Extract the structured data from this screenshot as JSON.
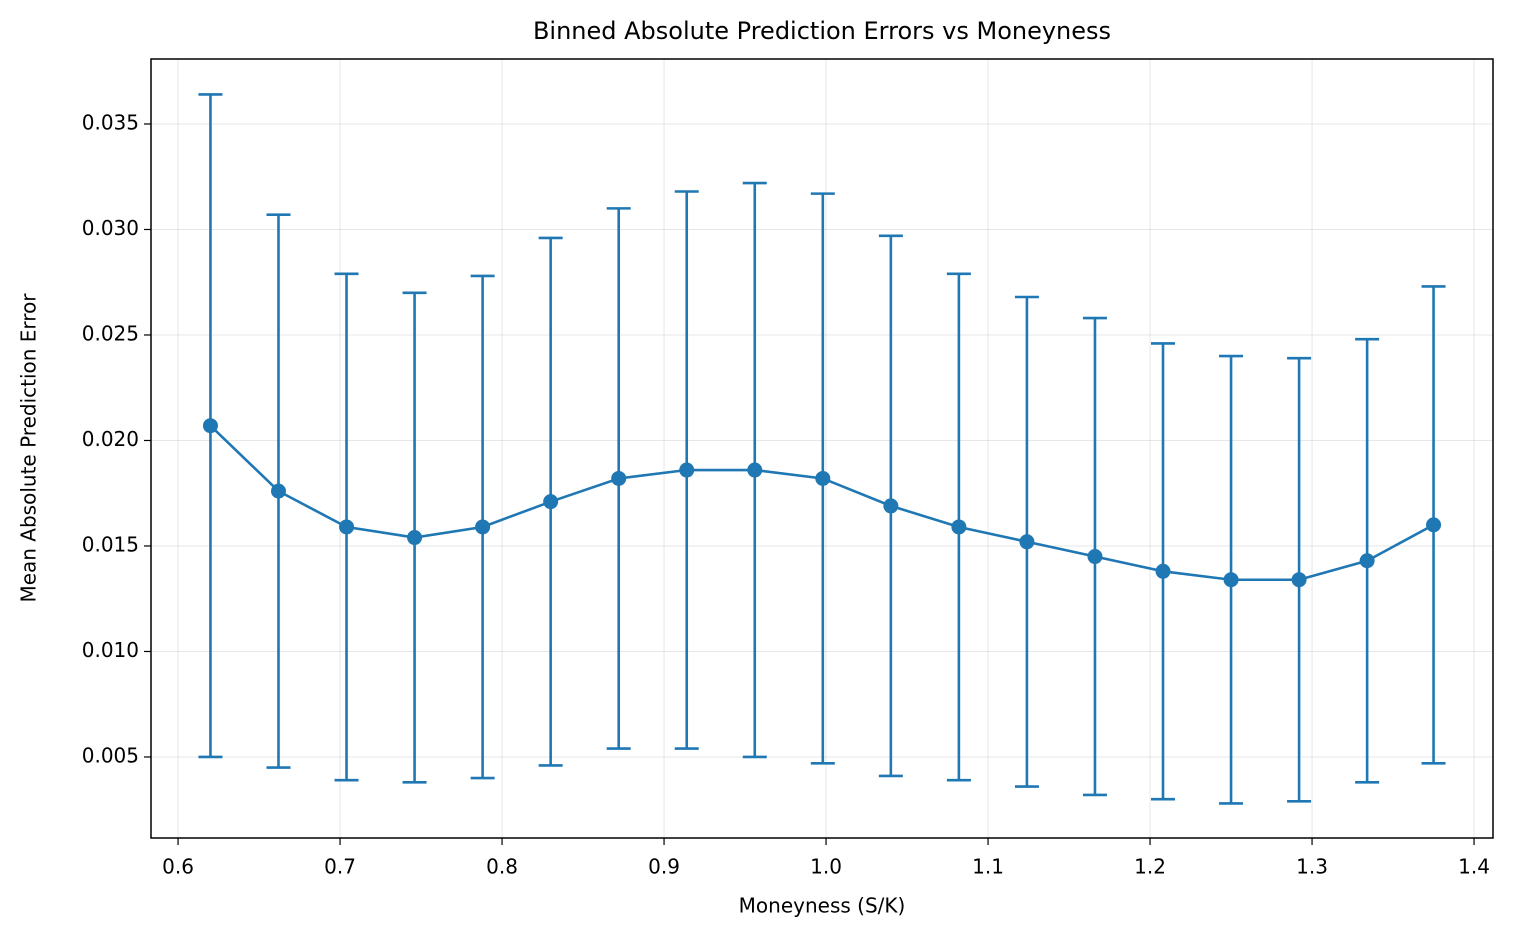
{
  "chart_data": {
    "type": "errorbar",
    "title": "Binned Absolute Prediction Errors vs Moneyness",
    "x_label": "Moneyness (S/K)",
    "y_label": "Mean Absolute Prediction Error",
    "x": [
      0.62,
      0.662,
      0.704,
      0.746,
      0.788,
      0.83,
      0.872,
      0.914,
      0.956,
      0.998,
      1.04,
      1.082,
      1.124,
      1.166,
      1.208,
      1.25,
      1.292,
      1.334,
      1.375
    ],
    "series": [
      {
        "name": "Mean Absolute Prediction Error",
        "color": "#1f77b4",
        "values": [
          0.0207,
          0.0176,
          0.0159,
          0.0154,
          0.0159,
          0.0171,
          0.0182,
          0.0186,
          0.0186,
          0.0182,
          0.0169,
          0.0159,
          0.0152,
          0.0145,
          0.0138,
          0.0134,
          0.0134,
          0.0143,
          0.016
        ],
        "errors": [
          0.0157,
          0.0131,
          0.012,
          0.0116,
          0.0119,
          0.0125,
          0.0128,
          0.0132,
          0.0136,
          0.0135,
          0.0128,
          0.012,
          0.0116,
          0.0113,
          0.0108,
          0.0106,
          0.0105,
          0.0105,
          0.0113
        ]
      }
    ],
    "xlim": [
      0.5833,
      1.4117
    ],
    "ylim": [
      0.00116,
      0.03808
    ],
    "xticks": [
      0.6,
      0.7,
      0.8,
      0.9,
      {
        "value": 1,
        "label": "1.0"
      },
      1.1,
      1.2,
      1.3,
      1.4
    ],
    "yticks": [
      0.005,
      {
        "value": 0.01,
        "label": "0.010"
      },
      0.015,
      {
        "value": 0.02,
        "label": "0.020"
      },
      0.025,
      {
        "value": 0.03,
        "label": "0.030"
      },
      0.035
    ],
    "grid": true
  }
}
